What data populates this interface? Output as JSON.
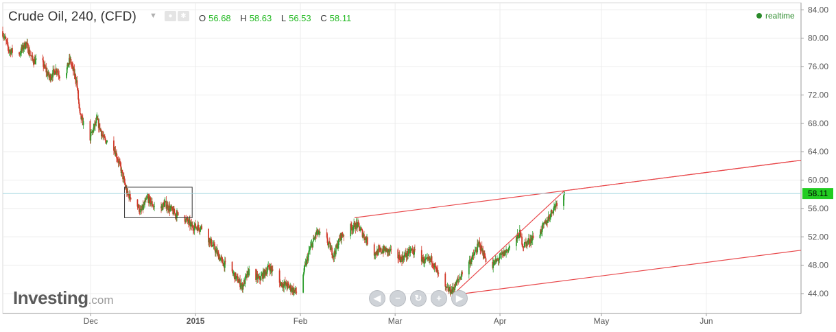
{
  "header": {
    "title": "Crude Oil, 240, (CFD)",
    "caret_icon": "caret-down-icon",
    "buttons": [
      "eye-icon",
      "settings-icon"
    ],
    "ohlc": [
      {
        "label": "O",
        "value": "56.68"
      },
      {
        "label": "H",
        "value": "58.63"
      },
      {
        "label": "L",
        "value": "56.53"
      },
      {
        "label": "C",
        "value": "58.11"
      }
    ],
    "realtime_label": "realtime"
  },
  "logo": {
    "brand": "Investing",
    "suffix": ".com"
  },
  "nav_buttons": [
    {
      "name": "nav-left-button",
      "icon": "arrow-left-icon",
      "glyph": "◀"
    },
    {
      "name": "nav-zoom-out-button",
      "icon": "minus-icon",
      "glyph": "−"
    },
    {
      "name": "nav-reset-button",
      "icon": "reset-icon",
      "glyph": "↻"
    },
    {
      "name": "nav-zoom-in-button",
      "icon": "plus-icon",
      "glyph": "+"
    },
    {
      "name": "nav-right-button",
      "icon": "arrow-right-icon",
      "glyph": "▶"
    }
  ],
  "colors": {
    "up_candle": "#2e9e2e",
    "down_candle": "#d13a2b",
    "trendline": "#e8474a",
    "price_line": "#9fd4df",
    "price_tag": "#22cc22",
    "grid": "#ececec"
  },
  "chart_data": {
    "type": "candlestick",
    "timeframe": "240",
    "y_axis": {
      "ticks": [
        "84.00",
        "80.00",
        "76.00",
        "72.00",
        "68.00",
        "64.00",
        "60.00",
        "56.00",
        "52.00",
        "48.00",
        "44.00"
      ],
      "range": [
        41.2,
        85.0
      ]
    },
    "x_axis": {
      "ticks": [
        {
          "label": "Dec",
          "date": "2014-12-01"
        },
        {
          "label": "2015",
          "date": "2015-01-01"
        },
        {
          "label": "Feb",
          "date": "2015-02-01"
        },
        {
          "label": "Mar",
          "date": "2015-03-01"
        },
        {
          "label": "Apr",
          "date": "2015-04-01"
        },
        {
          "label": "May",
          "date": "2015-05-01"
        },
        {
          "label": "Jun",
          "date": "2015-06-01"
        }
      ],
      "range": [
        "2014-11-05",
        "2015-06-29"
      ]
    },
    "last_price": "58.11",
    "price_path": [
      [
        "2014-11-05",
        81.0
      ],
      [
        "2014-11-07",
        78.3
      ],
      [
        "2014-11-10",
        77.8
      ],
      [
        "2014-11-12",
        79.3
      ],
      [
        "2014-11-14",
        76.9
      ],
      [
        "2014-11-17",
        76.4
      ],
      [
        "2014-11-19",
        74.4
      ],
      [
        "2014-11-21",
        75.7
      ],
      [
        "2014-11-23",
        73.9
      ],
      [
        "2014-11-25",
        77.0
      ],
      [
        "2014-11-27",
        73.9
      ],
      [
        "2014-11-28",
        69.0
      ],
      [
        "2014-12-01",
        66.0
      ],
      [
        "2014-12-03",
        68.5
      ],
      [
        "2014-12-05",
        65.8
      ],
      [
        "2014-12-08",
        64.7
      ],
      [
        "2014-12-10",
        61.7
      ],
      [
        "2014-12-12",
        58.0
      ],
      [
        "2014-12-14",
        57.3
      ],
      [
        "2014-12-16",
        55.5
      ],
      [
        "2014-12-18",
        57.5
      ],
      [
        "2014-12-21",
        55.5
      ],
      [
        "2014-12-23",
        56.7
      ],
      [
        "2014-12-26",
        55.3
      ],
      [
        "2014-12-29",
        54.6
      ],
      [
        "2014-12-31",
        53.5
      ],
      [
        "2015-01-03",
        53.3
      ],
      [
        "2015-01-06",
        51.0
      ],
      [
        "2015-01-09",
        48.5
      ],
      [
        "2015-01-12",
        47.0
      ],
      [
        "2015-01-15",
        45.0
      ],
      [
        "2015-01-17",
        47.2
      ],
      [
        "2015-01-20",
        46.0
      ],
      [
        "2015-01-23",
        47.8
      ],
      [
        "2015-01-26",
        45.5
      ],
      [
        "2015-01-28",
        45.2
      ],
      [
        "2015-01-31",
        44.2
      ],
      [
        "2015-02-02",
        46.8
      ],
      [
        "2015-02-04",
        50.3
      ],
      [
        "2015-02-06",
        52.6
      ],
      [
        "2015-02-09",
        51.5
      ],
      [
        "2015-02-11",
        49.4
      ],
      [
        "2015-02-13",
        52.0
      ],
      [
        "2015-02-16",
        53.3
      ],
      [
        "2015-02-18",
        53.7
      ],
      [
        "2015-02-21",
        51.3
      ],
      [
        "2015-02-23",
        49.7
      ],
      [
        "2015-02-26",
        50.2
      ],
      [
        "2015-03-01",
        49.5
      ],
      [
        "2015-03-03",
        48.9
      ],
      [
        "2015-03-06",
        50.1
      ],
      [
        "2015-03-08",
        49.4
      ],
      [
        "2015-03-10",
        48.5
      ],
      [
        "2015-03-12",
        48.8
      ],
      [
        "2015-03-14",
        46.5
      ],
      [
        "2015-03-16",
        44.6
      ],
      [
        "2015-03-18",
        44.4
      ],
      [
        "2015-03-20",
        46.0
      ],
      [
        "2015-03-22",
        47.9
      ],
      [
        "2015-03-24",
        49.0
      ],
      [
        "2015-03-26",
        51.0
      ],
      [
        "2015-03-28",
        48.8
      ],
      [
        "2015-03-30",
        48.0
      ],
      [
        "2015-04-01",
        49.0
      ],
      [
        "2015-04-03",
        50.0
      ],
      [
        "2015-04-06",
        51.7
      ],
      [
        "2015-04-07",
        52.5
      ],
      [
        "2015-04-08",
        50.8
      ],
      [
        "2015-04-10",
        51.5
      ],
      [
        "2015-04-13",
        52.7
      ],
      [
        "2015-04-15",
        54.2
      ],
      [
        "2015-04-17",
        56.0
      ],
      [
        "2015-04-18",
        56.9
      ],
      [
        "2015-04-20",
        58.11
      ]
    ],
    "annotations": {
      "box": {
        "start": "2014-12-11",
        "end": "2014-12-31",
        "low": 54.7,
        "high": 59.0
      },
      "pitchfork": {
        "start": {
          "date": "2015-02-17",
          "price": 54.7
        },
        "pivot": {
          "date": "2015-04-20",
          "price": 58.5
        },
        "end": {
          "date": "2015-03-18",
          "price": 43.8
        },
        "extend_to": "2015-06-29"
      }
    }
  }
}
